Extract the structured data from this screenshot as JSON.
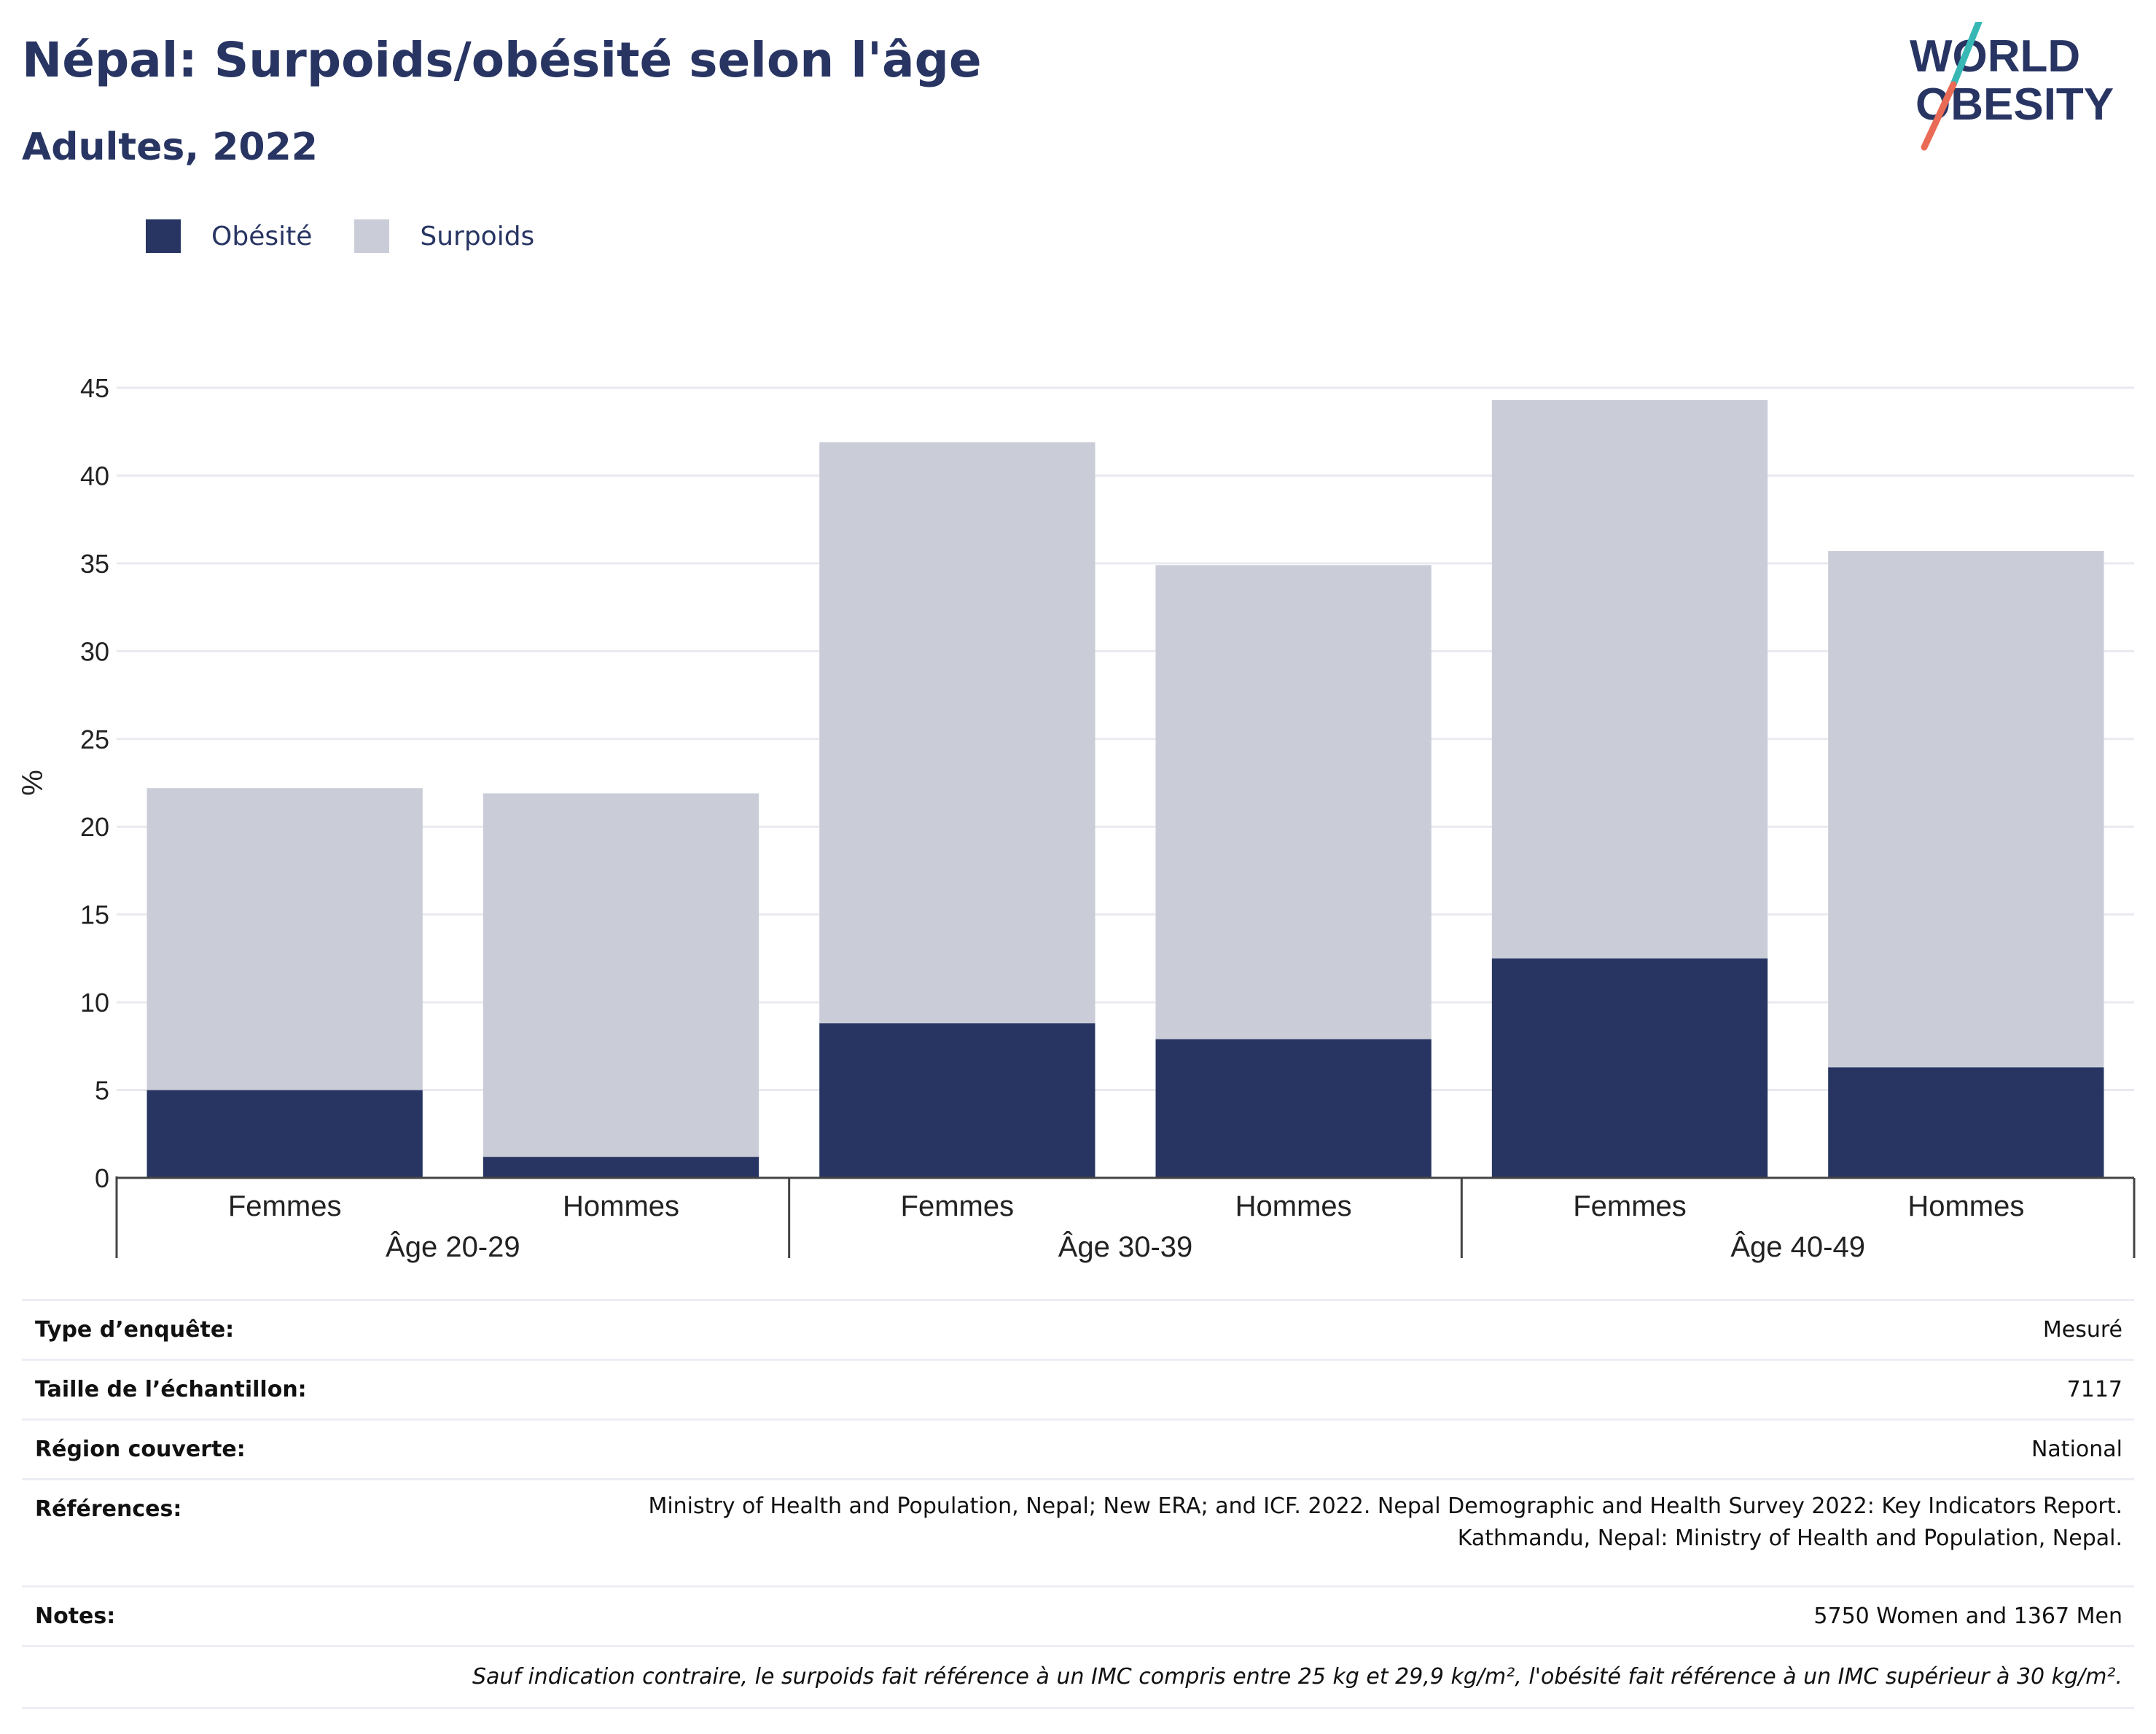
{
  "header": {
    "title": "Népal: Surpoids/obésité selon l'âge",
    "subtitle": "Adultes, 2022"
  },
  "logo": {
    "line1": "WORLD",
    "line2": "OBESITY"
  },
  "legend": [
    {
      "label": "Obésité",
      "color": "#283563"
    },
    {
      "label": "Surpoids",
      "color": "#cacdd8"
    }
  ],
  "chart_data": {
    "type": "bar",
    "stacked": true,
    "title": "Népal: Surpoids/obésité selon l'âge",
    "subtitle": "Adultes, 2022",
    "ylabel": "%",
    "ylim": [
      0,
      45
    ],
    "yticks": [
      0,
      5,
      10,
      15,
      20,
      25,
      30,
      35,
      40,
      45
    ],
    "grid": true,
    "legend_position": "top-left",
    "groups": [
      "Âge 20-29",
      "Âge 30-39",
      "Âge 40-49"
    ],
    "categories": [
      "Femmes",
      "Hommes",
      "Femmes",
      "Hommes",
      "Femmes",
      "Hommes"
    ],
    "series": [
      {
        "name": "Obésité",
        "color": "#283563",
        "values": [
          5.0,
          1.2,
          8.8,
          7.9,
          12.5,
          6.3
        ]
      },
      {
        "name": "Surpoids",
        "color": "#cacdd8",
        "values": [
          17.2,
          20.7,
          33.1,
          27.0,
          31.8,
          29.4
        ]
      }
    ]
  },
  "info": [
    {
      "key": "Type d’enquête:",
      "value": "Mesuré"
    },
    {
      "key": "Taille de l’échantillon:",
      "value": "7117"
    },
    {
      "key": "Région couverte:",
      "value": "National"
    },
    {
      "key": "Références:",
      "value": "Ministry of Health and Population, Nepal; New ERA; and ICF. 2022. Nepal Demographic and Health Survey 2022: Key Indicators Report.",
      "value2": "Kathmandu, Nepal: Ministry of Health and Population, Nepal."
    },
    {
      "key": "Notes:",
      "value": "5750 Women and 1367 Men"
    }
  ],
  "footnote": "Sauf indication contraire, le surpoids fait référence à un IMC compris entre 25 kg et 29,9 kg/m², l'obésité fait référence à un IMC supérieur à 30 kg/m²."
}
